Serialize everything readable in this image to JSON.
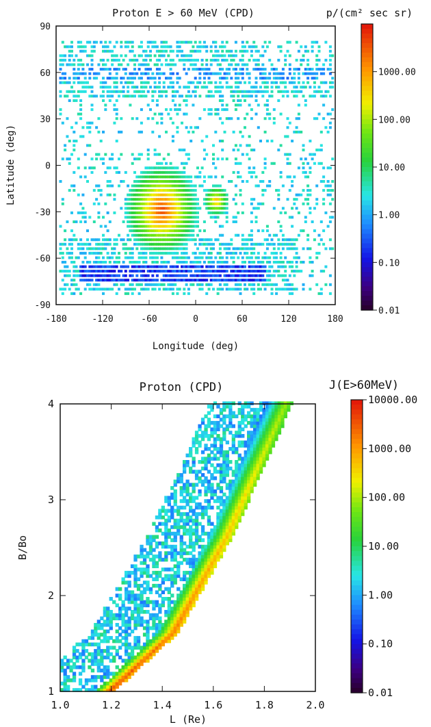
{
  "chart_data": [
    {
      "type": "heatmap",
      "title": "Proton E > 60 MeV (CPD)",
      "colorbar_title": "p/(cm² sec sr)",
      "xlabel": "Longitude (deg)",
      "ylabel": "Latitude (deg)",
      "xlim": [
        -180,
        180
      ],
      "ylim": [
        -90,
        90
      ],
      "xticks": [
        "-180",
        "-120",
        "-60",
        "0",
        "60",
        "120",
        "180"
      ],
      "yticks": [
        "90",
        "60",
        "30",
        "0",
        "-30",
        "-60",
        "-90"
      ],
      "colorbar_scale": "log",
      "colorbar_range": [
        0.01,
        10000
      ],
      "colorbar_ticks": [
        "1000.00",
        "100.00",
        "10.00",
        "1.00",
        "0.10",
        "0.01"
      ],
      "features": [
        {
          "name": "South Atlantic Anomaly",
          "center_lon": -45,
          "center_lat": -28,
          "peak_flux": 5000
        },
        {
          "name": "southern outer belt",
          "lat": -68,
          "lon_range": [
            -150,
            90
          ],
          "flux": 0.1
        },
        {
          "name": "northern band",
          "lat": 60,
          "lon_range": [
            -180,
            180
          ],
          "flux": 0.5
        }
      ]
    },
    {
      "type": "heatmap",
      "title": "Proton (CPD)",
      "colorbar_title": "J(E>60MeV)",
      "xlabel": "L (Re)",
      "ylabel": "B/Bo",
      "xlim": [
        1.0,
        2.0
      ],
      "ylim": [
        1,
        4
      ],
      "xticks": [
        "1.0",
        "1.2",
        "1.4",
        "1.6",
        "1.8",
        "2.0"
      ],
      "yticks": [
        "4",
        "3",
        "2",
        "1"
      ],
      "colorbar_scale": "log",
      "colorbar_range": [
        0.01,
        10000
      ],
      "colorbar_ticks": [
        "10000.00",
        "1000.00",
        "100.00",
        "10.00",
        "1.00",
        "0.10",
        "0.01"
      ],
      "features": [
        {
          "name": "trapped proton ridge",
          "points": [
            [
              1.16,
              1.0
            ],
            [
              1.4,
              1.6
            ],
            [
              1.6,
              2.6
            ],
            [
              1.82,
              4.0
            ]
          ],
          "peak_flux": 8000
        },
        {
          "name": "scattered low-flux region",
          "flux_range": [
            0.1,
            10
          ]
        }
      ]
    }
  ]
}
